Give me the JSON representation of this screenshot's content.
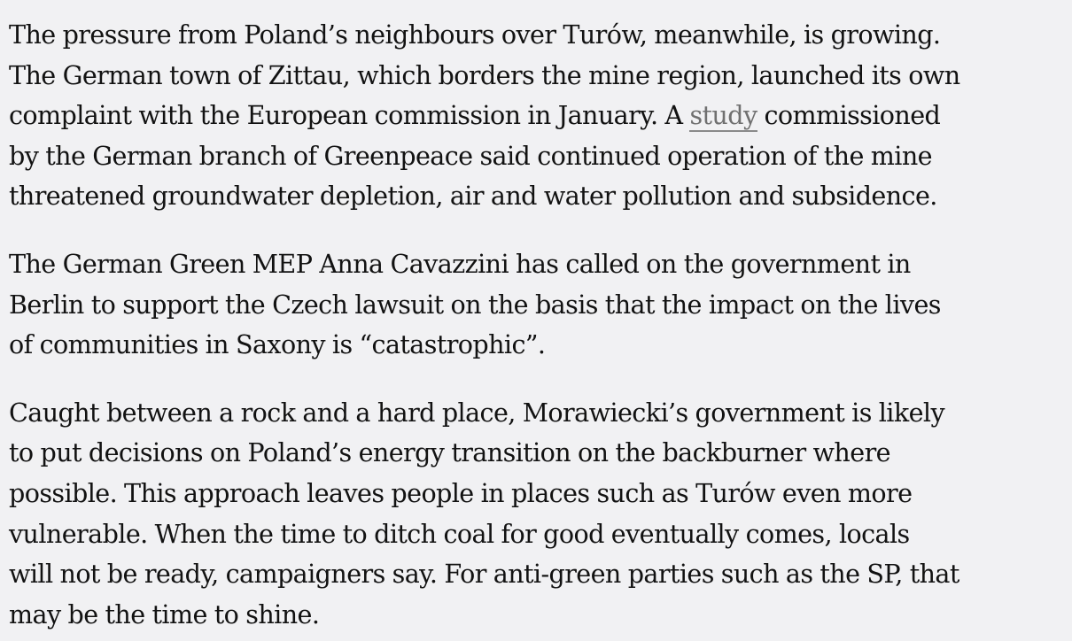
{
  "article": {
    "p1": {
      "line1": "The pressure from Poland’s neighbours over Turów, meanwhile, is growing.",
      "line2": "The German town of Zittau, which borders the mine region, launched its own",
      "line3_before_link": "complaint with the European commission in January. A ",
      "link_text": "study",
      "line3_after_link": " commissioned",
      "line4": "by the German branch of Greenpeace said continued operation of the mine",
      "line5": "threatened groundwater depletion, air and water pollution and subsidence."
    },
    "p2": {
      "line1": "The German Green MEP Anna Cavazzini has called on the government in",
      "line2": "Berlin to support the Czech lawsuit on the basis that the impact on the lives",
      "line3": "of communities in Saxony is “catastrophic”."
    },
    "p3": {
      "line1": "Caught between a rock and a hard place, Morawiecki’s government is likely",
      "line2": "to put decisions on Poland’s energy transition on the backburner where",
      "line3": "possible. This approach leaves people in places such as Turów even more",
      "line4": "vulnerable. When the time to ditch coal for good eventually comes, locals",
      "line5": "will not be ready, campaigners say. For anti-green parties such as the SP, that",
      "line6": "may be the time to shine."
    }
  }
}
